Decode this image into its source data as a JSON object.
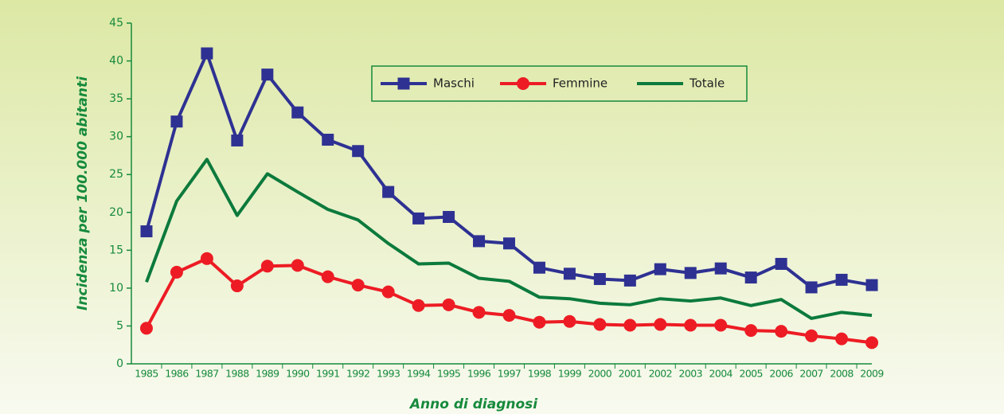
{
  "chart_data": {
    "type": "line",
    "x_label": "Anno di diagnosi",
    "y_label": "Incidenza per 100.000 abitanti",
    "categories": [
      "1985",
      "1986",
      "1987",
      "1988",
      "1989",
      "1990",
      "1991",
      "1992",
      "1993",
      "1994",
      "1995",
      "1996",
      "1997",
      "1998",
      "1999",
      "2000",
      "2001",
      "2002",
      "2003",
      "2004",
      "2005",
      "2006",
      "2007",
      "2008",
      "2009"
    ],
    "series": [
      {
        "name": "Maschi",
        "color": "#2e3192",
        "marker": "square",
        "values": [
          17.5,
          32,
          41,
          29.5,
          38.2,
          33.2,
          29.6,
          28.1,
          22.7,
          19.2,
          19.4,
          16.2,
          15.9,
          12.7,
          11.9,
          11.2,
          11.0,
          12.5,
          12.0,
          12.6,
          11.4,
          13.2,
          10.1,
          11.1,
          10.4
        ]
      },
      {
        "name": "Femmine",
        "color": "#ed1c24",
        "marker": "circle",
        "values": [
          4.7,
          12.1,
          13.9,
          10.3,
          12.9,
          13.0,
          11.5,
          10.4,
          9.5,
          7.7,
          7.8,
          6.8,
          6.4,
          5.5,
          5.6,
          5.2,
          5.1,
          5.2,
          5.1,
          5.1,
          4.4,
          4.3,
          3.7,
          3.3,
          2.8
        ]
      },
      {
        "name": "Totale",
        "color": "#0c7a3c",
        "marker": "none",
        "values": [
          10.8,
          21.5,
          27.0,
          19.6,
          25.1,
          22.7,
          20.4,
          19.0,
          15.9,
          13.2,
          13.3,
          11.3,
          10.9,
          8.8,
          8.6,
          8.0,
          7.8,
          8.6,
          8.3,
          8.7,
          7.7,
          8.5,
          6.0,
          6.8,
          6.4
        ]
      }
    ],
    "ylim": [
      0,
      45
    ],
    "yticks": [
      0,
      5,
      10,
      15,
      20,
      25,
      30,
      35,
      40,
      45
    ]
  }
}
